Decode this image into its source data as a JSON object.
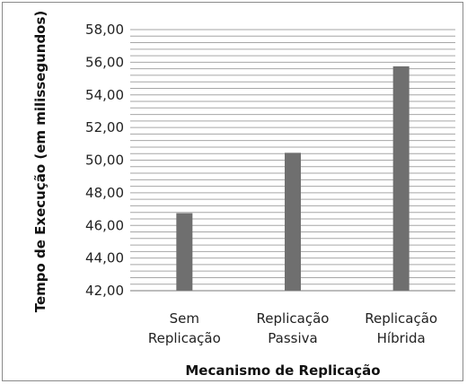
{
  "chart_data": {
    "type": "bar",
    "title": "",
    "xlabel": "Mecanismo de Replicação",
    "ylabel": "Tempo de Execução (em milissegundos)",
    "categories": [
      [
        "Sem",
        "Replicação"
      ],
      [
        "Replicação",
        "Passiva"
      ],
      [
        "Replicação",
        "Híbrida"
      ]
    ],
    "values": [
      46.75,
      50.45,
      55.75
    ],
    "ylim": [
      42,
      58
    ],
    "yticks": [
      "42,00",
      "44,00",
      "46,00",
      "48,00",
      "50,00",
      "52,00",
      "54,00",
      "56,00",
      "58,00"
    ],
    "ytick_values": [
      42,
      44,
      46,
      48,
      50,
      52,
      54,
      56,
      58
    ],
    "grid": true,
    "legend": "none",
    "bar_color": "#6f6f6f",
    "grid_color": "#a6a6a6"
  }
}
